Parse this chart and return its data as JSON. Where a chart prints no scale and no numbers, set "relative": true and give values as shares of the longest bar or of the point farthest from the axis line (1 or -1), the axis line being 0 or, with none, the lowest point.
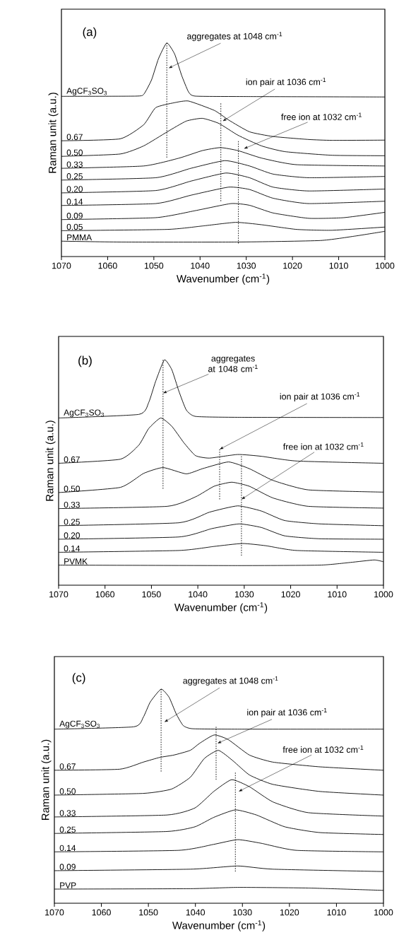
{
  "chart_data": [
    {
      "type": "line",
      "relative": true,
      "line_style": "solid",
      "xlabel": "Wavenumber (cm$^{-1}$)",
      "ylabel": "Raman unit (a.u.)",
      "xlim": [
        1070,
        1000
      ],
      "xticks": [
        1070,
        1060,
        1050,
        1040,
        1030,
        1020,
        1010,
        1000
      ],
      "annotations": [
        "(a)",
        {
          "text": "aggregates at 1048 cm$^{-1}$",
          "x": 1046.8,
          "y": 0.882
        },
        {
          "text": "ion pair at 1036 cm$^{-1}$",
          "x": 1035.1,
          "y": 0.634
        },
        {
          "text": "free ion at 1032 cm$^{-1}$",
          "x": 1030.5,
          "y": 0.505
        }
      ],
      "series": [
        {
          "color": "#000000",
          "line_style": "dotted",
          "x": [
            1047.2,
            1047.2
          ],
          "values": [
            1,
            0.463
          ]
        },
        {
          "color": "#000000",
          "line_style": "dotted",
          "x": [
            1035.5,
            1035.5
          ],
          "values": [
            0.717,
            0.259
          ]
        },
        {
          "color": "#000000",
          "line_style": "dotted",
          "x": [
            1031.7,
            1031.7
          ],
          "values": [
            0.54,
            0.061
          ]
        },
        {
          "name": "AgCF$_{3}$SO$_{3}$",
          "color": "#000000",
          "x": [
            1070,
            1054,
            1052.2,
            1050.5,
            1049,
            1047.2,
            1045.5,
            1044,
            1042.5,
            1041,
            1030,
            1000
          ],
          "values": [
            0.75,
            0.751,
            0.759,
            0.827,
            0.926,
            1,
            0.948,
            0.849,
            0.771,
            0.751,
            0.749,
            0.747
          ]
        },
        {
          "name": "0.67",
          "color": "#000000",
          "x": [
            1070,
            1057.3,
            1052.2,
            1049.6,
            1045.6,
            1042.5,
            1036.9,
            1033.8,
            1029.3,
            1024.2,
            1016.5,
            1011.4,
            1000
          ],
          "values": [
            0.542,
            0.551,
            0.617,
            0.697,
            0.72,
            0.728,
            0.684,
            0.639,
            0.584,
            0.562,
            0.548,
            0.544,
            0.545
          ]
        },
        {
          "name": "0.50",
          "color": "#000000",
          "x": [
            1070,
            1057.3,
            1052.2,
            1047.1,
            1043,
            1039.5,
            1035.9,
            1031.8,
            1026.7,
            1021.6,
            1011.4,
            1000
          ],
          "values": [
            0.469,
            0.48,
            0.518,
            0.584,
            0.634,
            0.647,
            0.623,
            0.568,
            0.518,
            0.491,
            0.474,
            0.472
          ]
        },
        {
          "name": "0.33",
          "color": "#000000",
          "x": [
            1070,
            1052.2,
            1044.5,
            1039.5,
            1035.6,
            1031.8,
            1026.7,
            1019.1,
            1000
          ],
          "values": [
            0.413,
            0.424,
            0.461,
            0.496,
            0.51,
            0.496,
            0.461,
            0.43,
            0.424
          ]
        },
        {
          "name": "0.25",
          "color": "#000000",
          "x": [
            1070,
            1049.6,
            1042,
            1034.6,
            1029.3,
            1024.2,
            1016.5,
            1000
          ],
          "values": [
            0.358,
            0.369,
            0.413,
            0.449,
            0.424,
            0.386,
            0.369,
            0.375
          ]
        },
        {
          "name": "0.20",
          "color": "#000000",
          "x": [
            1070,
            1049.6,
            1042,
            1034.4,
            1029.3,
            1024.2,
            1016.5,
            1000
          ],
          "values": [
            0.298,
            0.309,
            0.353,
            0.391,
            0.369,
            0.325,
            0.307,
            0.316
          ]
        },
        {
          "name": "0.14",
          "color": "#000000",
          "x": [
            1070,
            1049.6,
            1042,
            1033.8,
            1029.3,
            1024.2,
            1016.5,
            1000
          ],
          "values": [
            0.239,
            0.248,
            0.287,
            0.325,
            0.314,
            0.273,
            0.248,
            0.259
          ]
        },
        {
          "name": "0.09",
          "color": "#000000",
          "x": [
            1070,
            1049.6,
            1041,
            1033.3,
            1029.3,
            1024.2,
            1016.5,
            1008.9,
            1000
          ],
          "values": [
            0.173,
            0.182,
            0.215,
            0.248,
            0.24,
            0.204,
            0.179,
            0.182,
            0.207
          ]
        },
        {
          "name": "0.05",
          "color": "#000000",
          "x": [
            1070,
            1047.1,
            1039.5,
            1032.3,
            1026.7,
            1019.1,
            1011.4,
            1000
          ],
          "values": [
            0.121,
            0.127,
            0.143,
            0.16,
            0.149,
            0.127,
            0.123,
            0.138
          ]
        },
        {
          "name": "PMMA",
          "color": "#000000",
          "x": [
            1070,
            1057.3,
            1031.8,
            1014,
            1006.4,
            1000
          ],
          "values": [
            0.072,
            0.068,
            0.068,
            0.075,
            0.096,
            0.118
          ]
        }
      ]
    },
    {
      "type": "line",
      "relative": true,
      "line_style": "solid",
      "xlabel": "Wavenumber (cm$^{-1}$)",
      "ylabel": "Raman unit (a.u.)",
      "xlim": [
        1070,
        1000
      ],
      "xticks": [
        1070,
        1060,
        1050,
        1040,
        1030,
        1020,
        1010,
        1000
      ],
      "annotations": [
        "(b)",
        {
          "text": "aggregates at 1048 cm$^{-1}$",
          "x": 1047.5,
          "y": 0.852
        },
        {
          "text": "ion pair at 1036 cm$^{-1}$",
          "x": 1035.3,
          "y": 0.603
        },
        {
          "text": "free ion at 1032 cm$^{-1}$",
          "x": 1030.6,
          "y": 0.381
        }
      ],
      "series": [
        {
          "color": "#000000",
          "line_style": "dotted",
          "x": [
            1047.5,
            1047.5
          ],
          "values": [
            1,
            0.428
          ]
        },
        {
          "color": "#000000",
          "line_style": "dotted",
          "x": [
            1035.3,
            1035.3
          ],
          "values": [
            0.603,
            0.381
          ]
        },
        {
          "color": "#000000",
          "line_style": "dotted",
          "x": [
            1030.6,
            1030.6
          ],
          "values": [
            0.572,
            0.131
          ]
        },
        {
          "name": "AgCF$_{3}$SO$_{3}$",
          "color": "#000000",
          "x": [
            1070,
            1052.7,
            1050.6,
            1049.1,
            1047.2,
            1045.6,
            1044.1,
            1042.5,
            1040.5,
            1031.4,
            1000
          ],
          "values": [
            0.742,
            0.758,
            0.81,
            0.904,
            1,
            0.956,
            0.862,
            0.778,
            0.749,
            0.745,
            0.744
          ]
        },
        {
          "name": "0.67",
          "color": "#000000",
          "x": [
            1070,
            1056.7,
            1052.7,
            1050.6,
            1048,
            1045.6,
            1043,
            1040.5,
            1037.5,
            1031.4,
            1026.3,
            1018.7,
            1000
          ],
          "values": [
            0.541,
            0.559,
            0.622,
            0.695,
            0.742,
            0.705,
            0.632,
            0.575,
            0.564,
            0.58,
            0.572,
            0.551,
            0.541
          ]
        },
        {
          "name": "0.50",
          "color": "#000000",
          "x": [
            1070,
            1056.7,
            1051.7,
            1047.5,
            1042.5,
            1039,
            1033.4,
            1028.9,
            1023.8,
            1016.2,
            1000
          ],
          "values": [
            0.411,
            0.434,
            0.496,
            0.522,
            0.494,
            0.517,
            0.547,
            0.517,
            0.465,
            0.423,
            0.413
          ]
        },
        {
          "name": "0.33",
          "color": "#000000",
          "x": [
            1070,
            1046.6,
            1040.5,
            1036.5,
            1032.7,
            1028.9,
            1023.8,
            1016.2,
            1000
          ],
          "values": [
            0.34,
            0.35,
            0.392,
            0.439,
            0.457,
            0.439,
            0.387,
            0.35,
            0.342
          ]
        },
        {
          "name": "0.25",
          "color": "#000000",
          "x": [
            1070,
            1044.1,
            1037.5,
            1031.4,
            1026.3,
            1021.3,
            1013.7,
            1000
          ],
          "values": [
            0.264,
            0.277,
            0.324,
            0.352,
            0.329,
            0.287,
            0.272,
            0.264
          ]
        },
        {
          "name": "0.20",
          "color": "#000000",
          "x": [
            1070,
            1044.1,
            1037,
            1031.1,
            1026.3,
            1021.3,
            1013.7,
            1000
          ],
          "values": [
            0.204,
            0.214,
            0.251,
            0.272,
            0.256,
            0.219,
            0.206,
            0.204
          ]
        },
        {
          "name": "0.14",
          "color": "#000000",
          "x": [
            1070,
            1044.1,
            1036.5,
            1030.4,
            1025.3,
            1018.7,
            1000
          ],
          "values": [
            0.146,
            0.154,
            0.172,
            0.185,
            0.175,
            0.154,
            0.146
          ]
        },
        {
          "name": "PVMK",
          "color": "#000000",
          "x": [
            1070,
            1031.4,
            1013.7,
            1007.1,
            1002,
            1000
          ],
          "values": [
            0.089,
            0.087,
            0.089,
            0.101,
            0.112,
            0.104
          ]
        }
      ]
    },
    {
      "type": "line",
      "relative": true,
      "line_style": "solid",
      "xlabel": "Wavenumber (cm$^{-1}$)",
      "ylabel": "Raman unit (a.u.)",
      "xlim": [
        1070,
        1000
      ],
      "xticks": [
        1070,
        1060,
        1050,
        1040,
        1030,
        1020,
        1010,
        1000
      ],
      "annotations": [
        "(c)",
        {
          "text": "aggregates at 1048 cm$^{-1}$",
          "x": 1046.6,
          "y": 0.846
        },
        {
          "text": "ion pair at 1036 cm$^{-1}$",
          "x": 1035.3,
          "y": 0.747
        },
        {
          "text": "free ion at 1032 cm$^{-1}$",
          "x": 1030.8,
          "y": 0.522
        }
      ],
      "series": [
        {
          "color": "#000000",
          "line_style": "dotted",
          "x": [
            1047.3,
            1047.3
          ],
          "values": [
            1,
            0.615
          ]
        },
        {
          "color": "#000000",
          "line_style": "dotted",
          "x": [
            1035.6,
            1035.6
          ],
          "values": [
            0.824,
            0.577
          ]
        },
        {
          "color": "#000000",
          "line_style": "dotted",
          "x": [
            1031.5,
            1031.5
          ],
          "values": [
            0.61,
            0.148
          ]
        },
        {
          "name": "AgCF$_{3}$SO$_{3}$",
          "color": "#000000",
          "x": [
            1070,
            1053.1,
            1051.1,
            1049.6,
            1047.3,
            1045.6,
            1044.1,
            1042.6,
            1040.6,
            1031,
            1000
          ],
          "values": [
            0.813,
            0.824,
            0.868,
            0.94,
            1,
            0.962,
            0.885,
            0.83,
            0.815,
            0.813,
            0.813
          ]
        },
        {
          "name": "0.67",
          "color": "#000000",
          "x": [
            1070,
            1056.1,
            1051.1,
            1047.6,
            1044.6,
            1041.1,
            1039.1,
            1036,
            1033,
            1028.5,
            1023.5,
            1013.5,
            1000
          ],
          "values": [
            0.621,
            0.626,
            0.659,
            0.681,
            0.692,
            0.714,
            0.747,
            0.786,
            0.764,
            0.692,
            0.659,
            0.637,
            0.621
          ]
        },
        {
          "name": "0.50",
          "color": "#000000",
          "x": [
            1070,
            1051.1,
            1045.1,
            1041.1,
            1038.1,
            1035.1,
            1032,
            1028.5,
            1023.5,
            1013.5,
            1000
          ],
          "values": [
            0.505,
            0.513,
            0.533,
            0.588,
            0.676,
            0.714,
            0.665,
            0.599,
            0.555,
            0.522,
            0.505
          ]
        },
        {
          "name": "0.33",
          "color": "#000000",
          "x": [
            1070,
            1046.1,
            1040.1,
            1036.1,
            1032.3,
            1028.5,
            1023.5,
            1016,
            1000
          ],
          "values": [
            0.403,
            0.412,
            0.445,
            0.522,
            0.577,
            0.544,
            0.473,
            0.423,
            0.407
          ]
        },
        {
          "name": "0.25",
          "color": "#000000",
          "x": [
            1070,
            1046.1,
            1040.1,
            1036.1,
            1031.5,
            1027,
            1021,
            1013.5,
            1000
          ],
          "values": [
            0.326,
            0.335,
            0.357,
            0.401,
            0.436,
            0.412,
            0.357,
            0.33,
            0.321
          ]
        },
        {
          "name": "0.14",
          "color": "#000000",
          "x": [
            1070,
            1043.6,
            1036.1,
            1031,
            1026,
            1018.5,
            1000
          ],
          "values": [
            0.24,
            0.247,
            0.275,
            0.297,
            0.28,
            0.247,
            0.24
          ]
        },
        {
          "name": "0.09",
          "color": "#000000",
          "x": [
            1070,
            1041.1,
            1031,
            1023.5,
            1000
          ],
          "values": [
            0.152,
            0.159,
            0.174,
            0.159,
            0.148
          ]
        },
        {
          "name": "PVP",
          "color": "#000000",
          "x": [
            1070,
            1041.1,
            1031,
            1016,
            1000
          ],
          "values": [
            0.066,
            0.068,
            0.074,
            0.071,
            0.06
          ]
        }
      ]
    }
  ]
}
